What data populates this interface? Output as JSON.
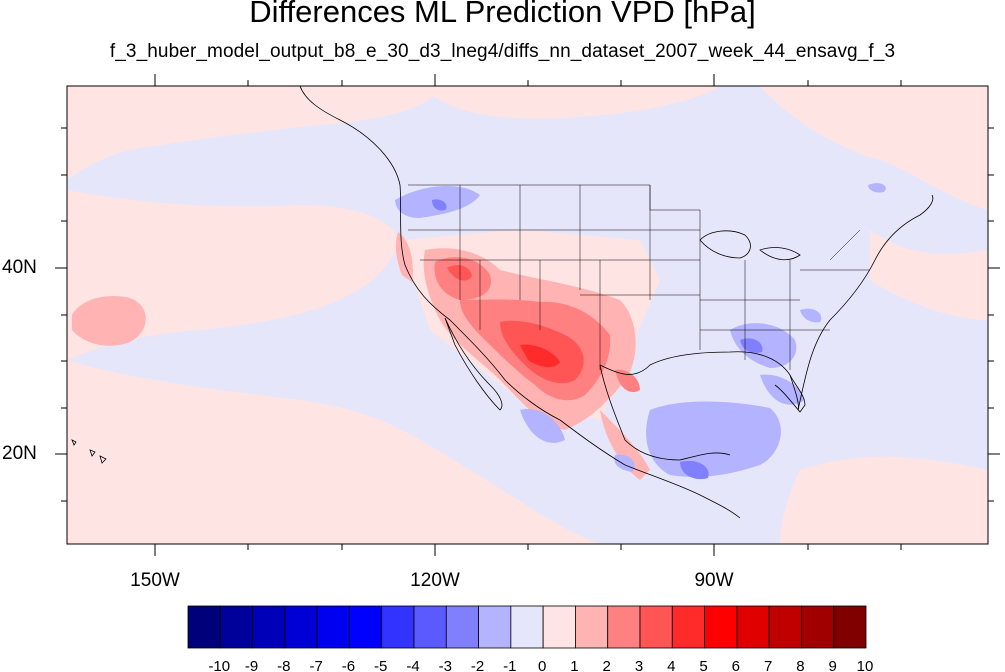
{
  "title": "Differences ML Prediction VPD [hPa]",
  "subtitle": "f_3_huber_model_output_b8_e_30_d3_lneg4/diffs_nn_dataset_2007_week_44_ensavg_f_3",
  "map": {
    "projection": "cylindrical-equidistant",
    "lon_range": [
      -160,
      -60
    ],
    "lat_range": [
      10,
      58
    ],
    "lon_ticks": [
      "150W",
      "120W",
      "90W"
    ],
    "lat_ticks": [
      "40N",
      "20N"
    ],
    "background_color": "#e6e6fa",
    "field_summary": {
      "positive_max_region": "US Southwest / Northern Mexico",
      "negative_regions": [
        "Gulf of Mexico",
        "Florida",
        "Pacific Northwest",
        "Lower Mississippi"
      ]
    }
  },
  "colorbar": {
    "levels": [
      "-10",
      "-9",
      "-8",
      "-7",
      "-6",
      "-5",
      "-4",
      "-3",
      "-2",
      "-1",
      "0",
      "1",
      "2",
      "3",
      "4",
      "5",
      "6",
      "7",
      "8",
      "9",
      "10"
    ],
    "colors": [
      "#00007a",
      "#00009a",
      "#0000b8",
      "#0000d6",
      "#0000f0",
      "#0000ff",
      "#3333ff",
      "#5a5aff",
      "#8080ff",
      "#b3b3ff",
      "#e6e6fa",
      "#ffe4e4",
      "#ffb3b3",
      "#ff8080",
      "#ff5555",
      "#ff2a2a",
      "#ff0000",
      "#e00000",
      "#c00000",
      "#a00000",
      "#800000"
    ]
  }
}
